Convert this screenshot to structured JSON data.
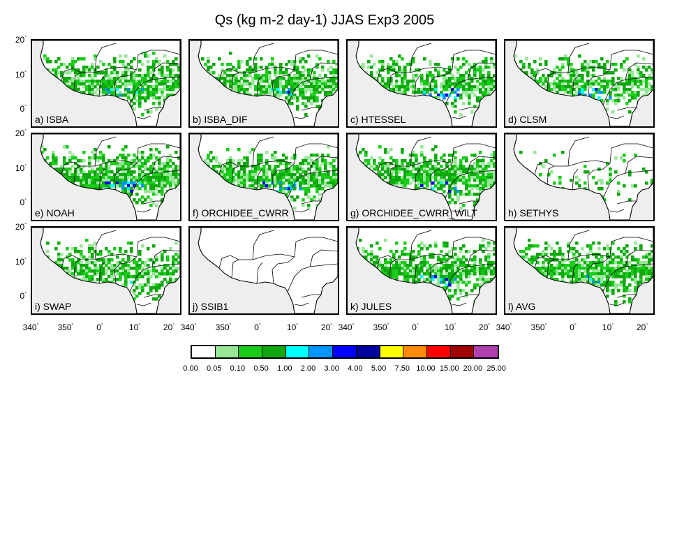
{
  "title": "Qs (kg m-2 day-1) JJAS Exp3 2005",
  "panels": [
    {
      "label": "a) ISBA",
      "coverage": 0.7,
      "intensity": 0.15
    },
    {
      "label": "b) ISBA_DIF",
      "coverage": 0.7,
      "intensity": 0.15
    },
    {
      "label": "c) HTESSEL",
      "coverage": 0.6,
      "intensity": 0.5
    },
    {
      "label": "d) CLSM",
      "coverage": 0.6,
      "intensity": 0.45
    },
    {
      "label": "e) NOAH",
      "coverage": 0.8,
      "intensity": 0.6
    },
    {
      "label": "f) ORCHIDEE_CWRR",
      "coverage": 0.75,
      "intensity": 0.45
    },
    {
      "label": "g) ORCHIDEE_CWRR_WILT",
      "coverage": 0.75,
      "intensity": 0.4
    },
    {
      "label": "h) SETHYS",
      "coverage": 0.15,
      "intensity": 0.05
    },
    {
      "label": "i) SWAP",
      "coverage": 0.55,
      "intensity": 0.05
    },
    {
      "label": "j) SSIB1",
      "coverage": 0.0,
      "intensity": 0.0
    },
    {
      "label": "k) JULES",
      "coverage": 0.7,
      "intensity": 0.3
    },
    {
      "label": "l) AVG",
      "coverage": 0.75,
      "intensity": 0.15
    }
  ],
  "y_ticks": [
    "20",
    "10",
    "0"
  ],
  "x_ticks": [
    "340",
    "350",
    "0",
    "10",
    "20"
  ],
  "degree_symbol": "°",
  "colorbar": {
    "labels": [
      "0.00",
      "0.05",
      "0.10",
      "0.50",
      "1.00",
      "2.00",
      "3.00",
      "4.00",
      "5.00",
      "7.50",
      "10.00",
      "15.00",
      "20.00",
      "25.00"
    ],
    "colors": [
      "#ffffff",
      "#99e699",
      "#19cc19",
      "#0fa80f",
      "#00ffff",
      "#0096ff",
      "#0000ff",
      "#00009e",
      "#ffff00",
      "#ff8c00",
      "#ff0000",
      "#a00000",
      "#b040b0"
    ]
  },
  "land_color": "#ffffff",
  "ocean_color": "#eeeeee"
}
